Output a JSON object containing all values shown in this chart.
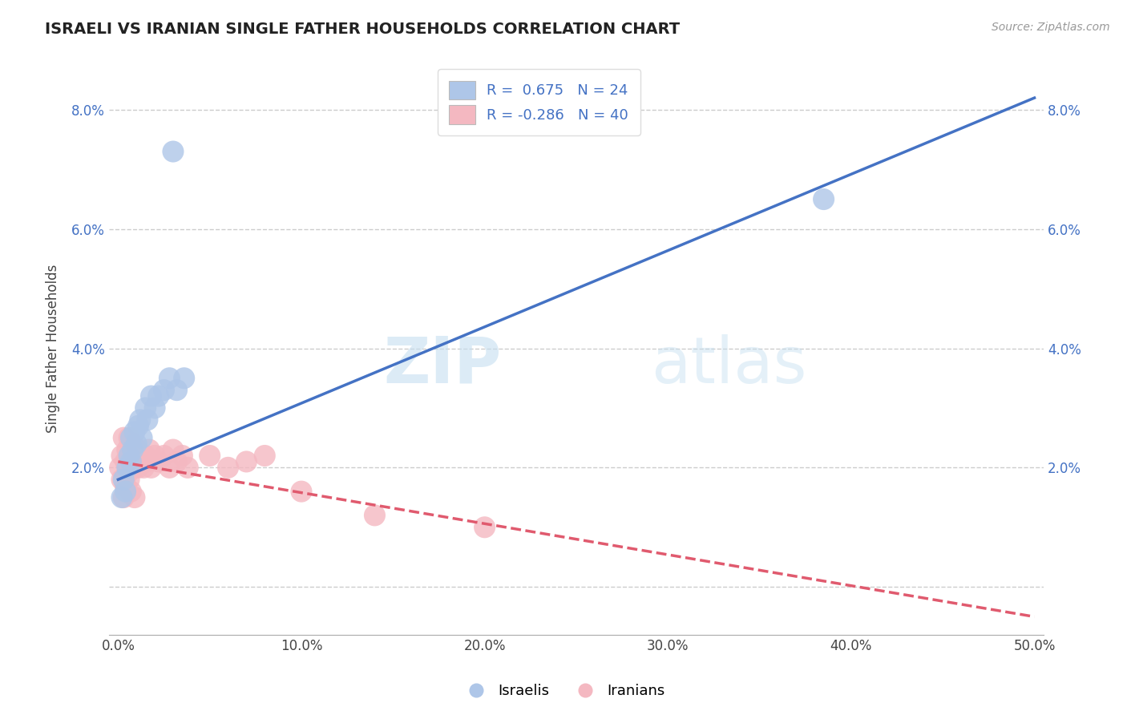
{
  "title": "ISRAELI VS IRANIAN SINGLE FATHER HOUSEHOLDS CORRELATION CHART",
  "source": "Source: ZipAtlas.com",
  "ylabel": "Single Father Households",
  "xlabel": "",
  "xlim": [
    -0.005,
    0.505
  ],
  "ylim": [
    -0.008,
    0.088
  ],
  "yticks": [
    0.0,
    0.02,
    0.04,
    0.06,
    0.08
  ],
  "ytick_labels": [
    "",
    "2.0%",
    "4.0%",
    "6.0%",
    "8.0%"
  ],
  "xticks": [
    0.0,
    0.1,
    0.2,
    0.3,
    0.4,
    0.5
  ],
  "xtick_labels": [
    "0.0%",
    "10.0%",
    "20.0%",
    "30.0%",
    "40.0%",
    "50.0%"
  ],
  "grid_color": "#cccccc",
  "background_color": "#ffffff",
  "israeli_color": "#aec6e8",
  "iranian_color": "#f4b8c1",
  "israeli_line_color": "#4472c4",
  "iranian_line_color": "#e05a6e",
  "legend_r_color": "#4472c4",
  "watermark_zip": "ZIP",
  "watermark_atlas": "atlas",
  "israeli_R": 0.675,
  "israeli_N": 24,
  "iranian_R": -0.286,
  "iranian_N": 40,
  "israeli_line_x0": 0.0,
  "israeli_line_y0": 0.018,
  "israeli_line_x1": 0.5,
  "israeli_line_y1": 0.082,
  "iranian_line_x0": 0.0,
  "iranian_line_y0": 0.021,
  "iranian_line_x1": 0.5,
  "iranian_line_y1": -0.005,
  "israelis_x": [
    0.002,
    0.003,
    0.004,
    0.005,
    0.006,
    0.007,
    0.007,
    0.008,
    0.009,
    0.01,
    0.011,
    0.012,
    0.013,
    0.015,
    0.016,
    0.018,
    0.02,
    0.022,
    0.025,
    0.028,
    0.032,
    0.036,
    0.03,
    0.385
  ],
  "israelis_y": [
    0.015,
    0.018,
    0.016,
    0.02,
    0.022,
    0.021,
    0.025,
    0.023,
    0.026,
    0.024,
    0.027,
    0.028,
    0.025,
    0.03,
    0.028,
    0.032,
    0.03,
    0.032,
    0.033,
    0.035,
    0.033,
    0.035,
    0.073,
    0.065
  ],
  "iranians_x": [
    0.001,
    0.002,
    0.002,
    0.003,
    0.003,
    0.004,
    0.004,
    0.005,
    0.005,
    0.006,
    0.006,
    0.007,
    0.007,
    0.008,
    0.009,
    0.009,
    0.01,
    0.011,
    0.012,
    0.013,
    0.014,
    0.015,
    0.016,
    0.017,
    0.018,
    0.02,
    0.022,
    0.025,
    0.028,
    0.03,
    0.032,
    0.035,
    0.038,
    0.05,
    0.06,
    0.07,
    0.08,
    0.1,
    0.14,
    0.2
  ],
  "iranians_y": [
    0.02,
    0.022,
    0.018,
    0.025,
    0.015,
    0.021,
    0.017,
    0.023,
    0.019,
    0.025,
    0.018,
    0.022,
    0.016,
    0.024,
    0.02,
    0.015,
    0.023,
    0.02,
    0.022,
    0.021,
    0.02,
    0.022,
    0.021,
    0.023,
    0.02,
    0.022,
    0.021,
    0.022,
    0.02,
    0.023,
    0.021,
    0.022,
    0.02,
    0.022,
    0.02,
    0.021,
    0.022,
    0.016,
    0.012,
    0.01
  ]
}
